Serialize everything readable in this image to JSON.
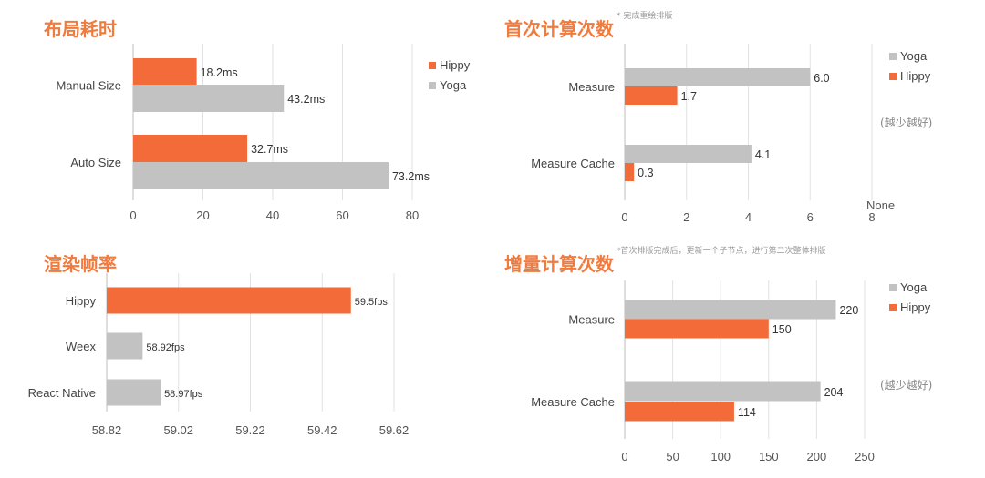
{
  "colors": {
    "hippy": "#f26b38",
    "yoga": "#c2c2c2",
    "title": "#f07b3f",
    "grid": "#e2e2e2"
  },
  "chart_data": [
    {
      "id": "layout",
      "type": "bar",
      "orientation": "horizontal",
      "title": "布局耗时",
      "note": "",
      "aside": "",
      "categories": [
        "Manual Size",
        "Auto Size"
      ],
      "series": [
        {
          "name": "Hippy",
          "key": "hippy",
          "values": [
            18.2,
            32.7
          ],
          "labels": [
            "18.2ms",
            "32.7ms"
          ]
        },
        {
          "name": "Yoga",
          "key": "yoga",
          "values": [
            43.2,
            73.2
          ],
          "labels": [
            "43.2ms",
            "73.2ms"
          ]
        }
      ],
      "legend": [
        "Hippy",
        "Yoga"
      ],
      "legend_placement": "right",
      "xlim": [
        0,
        80
      ],
      "ticks": [
        0,
        20,
        40,
        60,
        80
      ],
      "tick_labels": [
        "0",
        "20",
        "40",
        "60",
        "80"
      ],
      "grid": true
    },
    {
      "id": "first_calc",
      "type": "bar",
      "orientation": "horizontal",
      "title": "首次计算次数",
      "note": "* 完成重绘排版",
      "aside": "(越少越好)",
      "categories": [
        "Measure",
        "Measure Cache"
      ],
      "series": [
        {
          "name": "Yoga",
          "key": "yoga",
          "values": [
            6.0,
            4.1
          ],
          "labels": [
            "6.0",
            "4.1"
          ]
        },
        {
          "name": "Hippy",
          "key": "hippy",
          "values": [
            1.7,
            0.3
          ],
          "labels": [
            "1.7",
            "0.3"
          ]
        }
      ],
      "legend": [
        "Yoga",
        "Hippy"
      ],
      "legend_placement": "right",
      "xlim": [
        0,
        8
      ],
      "ticks": [
        0,
        2,
        4,
        6,
        8
      ],
      "tick_labels": [
        "0",
        "2",
        "4",
        "6",
        "8"
      ],
      "extra_label": "None",
      "grid": true
    },
    {
      "id": "fps",
      "type": "bar",
      "orientation": "horizontal",
      "title": "渲染帧率",
      "note": "",
      "aside": "",
      "categories": [
        "Hippy",
        "Weex",
        "React Native"
      ],
      "series": [
        {
          "name": "",
          "key": "fps",
          "values": [
            59.5,
            58.92,
            58.97
          ],
          "labels": [
            "59.5fps",
            "58.92fps",
            "58.97fps"
          ],
          "colors": [
            "hippy",
            "yoga",
            "yoga"
          ]
        }
      ],
      "legend": [],
      "xlim": [
        58.82,
        59.62
      ],
      "ticks": [
        58.82,
        59.02,
        59.22,
        59.42,
        59.62
      ],
      "tick_labels": [
        "58.82",
        "59.02",
        "59.22",
        "59.42",
        "59.62"
      ],
      "grid": true
    },
    {
      "id": "incremental",
      "type": "bar",
      "orientation": "horizontal",
      "title": "增量计算次数",
      "note": "*首次排版完成后，更新一个子节点，进行第二次整体排版",
      "aside": "(越少越好)",
      "categories": [
        "Measure",
        "Measure Cache"
      ],
      "series": [
        {
          "name": "Yoga",
          "key": "yoga",
          "values": [
            220,
            204
          ],
          "labels": [
            "220",
            "204"
          ]
        },
        {
          "name": "Hippy",
          "key": "hippy",
          "values": [
            150,
            114
          ],
          "labels": [
            "150",
            "114"
          ]
        }
      ],
      "legend": [
        "Yoga",
        "Hippy"
      ],
      "legend_placement": "right",
      "xlim": [
        0,
        250
      ],
      "ticks": [
        0,
        50,
        100,
        150,
        200,
        250
      ],
      "tick_labels": [
        "0",
        "50",
        "100",
        "150",
        "200",
        "250"
      ],
      "grid": true
    }
  ]
}
